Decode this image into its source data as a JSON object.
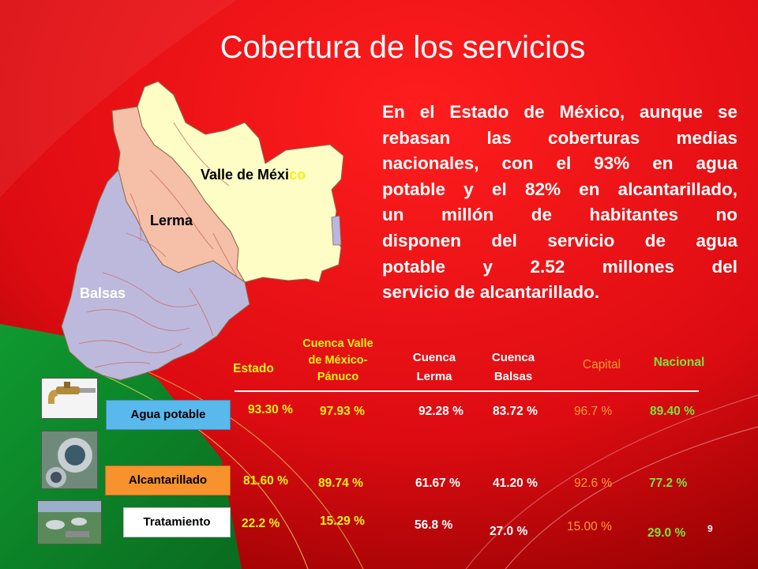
{
  "title": "Cobertura de los servicios",
  "paragraph": [
    "En el Estado de México, aunque se",
    "rebasan las coberturas medias",
    "nacionales, con el 93% en agua",
    "potable y el 82% en alcantarillado,",
    "un millón de habitantes no",
    "disponen del servicio de agua",
    "potable y 2.52 millones del",
    "servicio de alcantarillado."
  ],
  "map": {
    "valle_label": "Valle de Méxi",
    "valle_label_tail": "co",
    "lerma_label": "Lerma",
    "balsas_label": "Balsas"
  },
  "table": {
    "headers": {
      "estado": "Estado",
      "valle_line1": "Cuenca Valle",
      "valle_line2": "de México-",
      "valle_line3": "Pánuco",
      "lerma_line1": "Cuenca",
      "lerma_line2": "Lerma",
      "balsas_line1": "Cuenca",
      "balsas_line2": "Balsas",
      "capital": "Capital",
      "nacional": "Nacional"
    },
    "rows": [
      {
        "label": "Agua potable",
        "icon": "faucet-icon",
        "values": [
          "93.30 %",
          "97.93 %",
          "92.28 %",
          "83.72 %",
          "96.7 %",
          "89.40 %"
        ]
      },
      {
        "label": "Alcantarillado",
        "icon": "pipe-icon",
        "values": [
          "81.60 %",
          "89.74 %",
          "61.67 %",
          "41.20 %",
          "92.6 %",
          "77.2 %"
        ]
      },
      {
        "label": "Tratamiento",
        "icon": "treatment-plant-icon",
        "values": [
          "22.2 %",
          "15.29 %",
          "56.8 %",
          "27.0 %",
          "15.00 %",
          "29.0 %"
        ]
      }
    ]
  },
  "page_number": "9",
  "colors": {
    "background_red": "#e8101a",
    "background_dark": "#a00000",
    "green": "#0b8f2c",
    "yellow": "#f2f215",
    "orange_text": "#ff9b33",
    "green_text": "#7be33a",
    "agua_box": "#59b8ec",
    "alcantarillado_box": "#f7922d",
    "tratamiento_box": "#ffffff",
    "valle_fill": "#fefdc6",
    "lerma_fill": "#f6bfa8",
    "balsas_fill": "#bdb9dc"
  }
}
